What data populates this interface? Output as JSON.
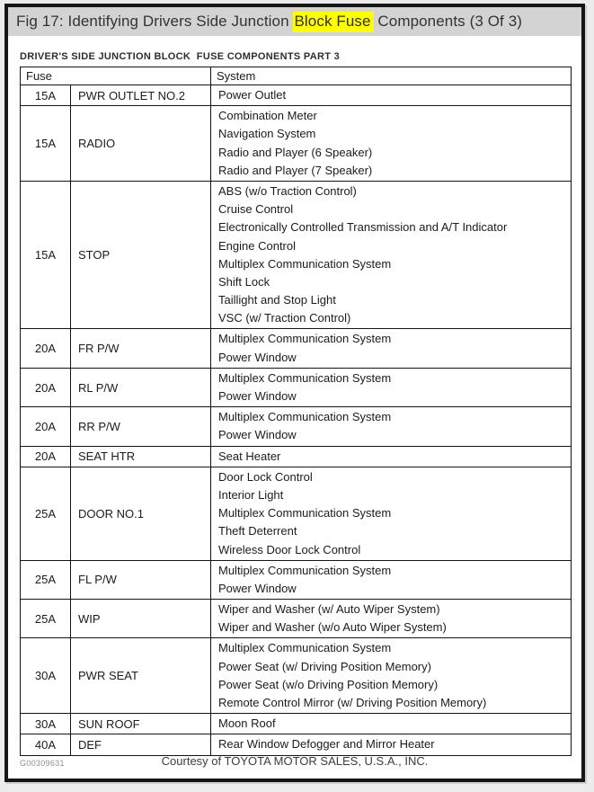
{
  "header": {
    "prefix": "Fig 17: Identifying Drivers Side Junction ",
    "highlight": "Block Fuse",
    "suffix": " Components (3 Of 3)"
  },
  "table": {
    "caption": "DRIVER'S SIDE JUNCTION BLOCK  FUSE COMPONENTS PART 3",
    "headers": {
      "fuse": "Fuse",
      "system": "System"
    },
    "rows": [
      {
        "amp": "15A",
        "name": "PWR OUTLET NO.2",
        "systems": [
          "Power Outlet"
        ]
      },
      {
        "amp": "15A",
        "name": "RADIO",
        "systems": [
          "Combination Meter",
          "Navigation System",
          "Radio and Player (6 Speaker)",
          "Radio and Player (7 Speaker)"
        ]
      },
      {
        "amp": "15A",
        "name": "STOP",
        "systems": [
          "ABS (w/o Traction Control)",
          "Cruise Control",
          "Electronically Controlled Transmission and A/T Indicator",
          "Engine Control",
          "Multiplex Communication System",
          "Shift Lock",
          "Taillight and Stop Light",
          "VSC (w/ Traction Control)"
        ]
      },
      {
        "amp": "20A",
        "name": "FR P/W",
        "systems": [
          "Multiplex Communication System",
          "Power Window"
        ]
      },
      {
        "amp": "20A",
        "name": "RL P/W",
        "systems": [
          "Multiplex Communication System",
          "Power Window"
        ]
      },
      {
        "amp": "20A",
        "name": "RR P/W",
        "systems": [
          "Multiplex Communication System",
          "Power Window"
        ]
      },
      {
        "amp": "20A",
        "name": "SEAT HTR",
        "systems": [
          "Seat Heater"
        ]
      },
      {
        "amp": "25A",
        "name": "DOOR NO.1",
        "systems": [
          "Door Lock Control",
          "Interior Light",
          "Multiplex Communication System",
          "Theft Deterrent",
          "Wireless Door Lock Control"
        ]
      },
      {
        "amp": "25A",
        "name": "FL P/W",
        "systems": [
          "Multiplex Communication System",
          "Power Window"
        ]
      },
      {
        "amp": "25A",
        "name": "WIP",
        "systems": [
          "Wiper and Washer (w/ Auto Wiper System)",
          "Wiper and Washer (w/o Auto Wiper System)"
        ]
      },
      {
        "amp": "30A",
        "name": "PWR SEAT",
        "systems": [
          "Multiplex Communication System",
          "Power Seat (w/ Driving Position Memory)",
          "Power Seat (w/o Driving Position Memory)",
          "Remote Control Mirror (w/ Driving Position Memory)"
        ]
      },
      {
        "amp": "30A",
        "name": "SUN ROOF",
        "systems": [
          "Moon Roof"
        ]
      },
      {
        "amp": "40A",
        "name": "DEF",
        "systems": [
          "Rear Window Defogger and Mirror Heater"
        ]
      }
    ],
    "figure_code": "G00309631"
  },
  "footer": {
    "credit": "Courtesy of TOYOTA MOTOR SALES, U.S.A., INC."
  },
  "colors": {
    "highlight": "#ffff00",
    "titlebar_bg": "#d3d3d3",
    "frame": "#161616"
  }
}
